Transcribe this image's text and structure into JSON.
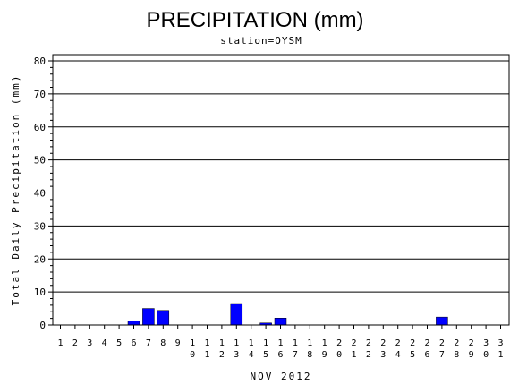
{
  "chart_data": {
    "type": "bar",
    "title": "PRECIPITATION (mm)",
    "subtitle": "station=OYSM",
    "ylabel": "Total Daily Precipitation (mm)",
    "xlabel": "NOV 2012",
    "ylim": [
      0,
      80
    ],
    "yticks": [
      "0",
      "10",
      "20",
      "30",
      "40",
      "50",
      "60",
      "70",
      "80"
    ],
    "grid": true,
    "categories": [
      "1",
      "2",
      "3",
      "4",
      "5",
      "6",
      "7",
      "8",
      "9",
      "10",
      "11",
      "12",
      "13",
      "14",
      "15",
      "16",
      "17",
      "18",
      "19",
      "20",
      "21",
      "22",
      "23",
      "24",
      "25",
      "26",
      "27",
      "28",
      "29",
      "30",
      "31"
    ],
    "values": [
      0,
      0,
      0,
      0,
      0,
      1.2,
      5.0,
      4.4,
      0,
      0,
      0,
      0,
      6.5,
      0,
      0.6,
      2.1,
      0,
      0,
      0,
      0,
      0,
      0,
      0,
      0,
      0,
      0,
      2.4,
      0,
      0,
      0,
      0
    ],
    "bar_color": "#0000ff"
  }
}
